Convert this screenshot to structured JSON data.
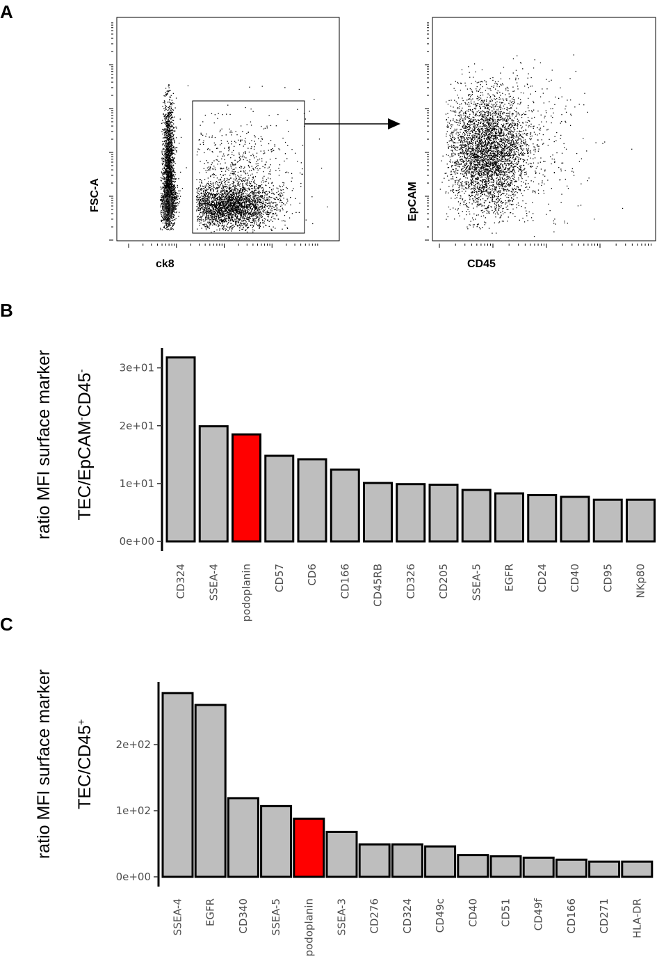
{
  "panels": {
    "a": "A",
    "b": "B",
    "c": "C"
  },
  "flow": {
    "plot1": {
      "xlabel": "ck8",
      "ylabel": "FSC-A"
    },
    "plot2": {
      "xlabel": "CD45",
      "ylabel": "EpCAM"
    }
  },
  "chart_data": [
    {
      "type": "bar",
      "title": "",
      "ylabel": "ratio MFI surface marker",
      "ylabel_line2": {
        "base": "TEC/EpCAM",
        "sup1": "-",
        "mid": "CD45",
        "sup2": "-"
      },
      "categories": [
        "CD324",
        "SSEA-4",
        "podoplanin",
        "CD57",
        "CD6",
        "CD166",
        "CD45RB",
        "CD326",
        "CD205",
        "SSEA-5",
        "EGFR",
        "CD24",
        "CD40",
        "CD95",
        "NKp80"
      ],
      "values": [
        31.8,
        19.9,
        18.5,
        14.8,
        14.2,
        12.4,
        10.1,
        9.9,
        9.8,
        8.9,
        8.3,
        8.0,
        7.7,
        7.2,
        7.2
      ],
      "highlight": "podoplanin",
      "colors": {
        "bar": "#bebebe",
        "highlight": "#ff0000",
        "outline": "#000000"
      },
      "yticks": [
        0,
        10,
        20,
        30
      ],
      "ytick_labels": [
        "0e+00",
        "1e+01",
        "2e+01",
        "3e+01"
      ],
      "ylim": [
        0,
        32
      ]
    },
    {
      "type": "bar",
      "title": "",
      "ylabel": "ratio MFI surface marker",
      "ylabel_line2": {
        "base": "TEC/CD45",
        "sup1": "+"
      },
      "categories": [
        "SSEA-4",
        "EGFR",
        "CD340",
        "SSEA-5",
        "podoplanin",
        "SSEA-3",
        "CD276",
        "CD324",
        "CD49c",
        "CD40",
        "CD51",
        "CD49f",
        "CD166",
        "CD271",
        "HLA-DR"
      ],
      "values": [
        278,
        260,
        119,
        107,
        88,
        68,
        49,
        49,
        46,
        33,
        31,
        29,
        26,
        23,
        23
      ],
      "highlight": "podoplanin",
      "colors": {
        "bar": "#bebebe",
        "highlight": "#ff0000",
        "outline": "#000000"
      },
      "yticks": [
        0,
        100,
        200
      ],
      "ytick_labels": [
        "0e+00",
        "1e+02",
        "2e+02"
      ],
      "ylim": [
        0,
        280
      ]
    }
  ]
}
